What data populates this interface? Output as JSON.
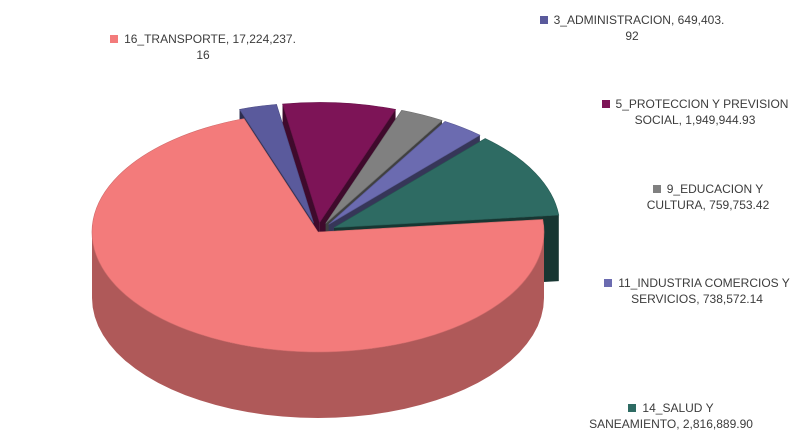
{
  "chart_data": {
    "type": "pie",
    "title": "",
    "legend_placement": "around",
    "slices": [
      {
        "label": "16_TRANSPORTE, 17,224,237.\n16",
        "category": "16_TRANSPORTE",
        "value": 17224237.16,
        "color": "#f37b7b",
        "exploded": false
      },
      {
        "label": "3_ADMINISTRACION, 649,403.\n92",
        "category": "3_ADMINISTRACION",
        "value": 649403.92,
        "color": "#5a5a9c",
        "exploded": true
      },
      {
        "label": "5_PROTECCION Y PREVISION\nSOCIAL, 1,949,944.93",
        "category": "5_PROTECCION Y PREVISION SOCIAL",
        "value": 1949944.93,
        "color": "#7d1457",
        "exploded": true
      },
      {
        "label": "9_EDUCACION Y\nCULTURA, 759,753.42",
        "category": "9_EDUCACION Y CULTURA",
        "value": 759753.42,
        "color": "#808080",
        "exploded": true
      },
      {
        "label": "11_INDUSTRIA COMERCIOS Y\nSERVICIOS, 738,572.14",
        "category": "11_INDUSTRIA COMERCIOS Y SERVICIOS",
        "value": 738572.14,
        "color": "#6b6bb0",
        "exploded": true
      },
      {
        "label": "14_SALUD Y\nSANEAMIENTO, 2,816,889.90",
        "category": "14_SALUD Y SANEAMIENTO",
        "value": 2816889.9,
        "color": "#2e6b63",
        "exploded": true
      }
    ]
  }
}
